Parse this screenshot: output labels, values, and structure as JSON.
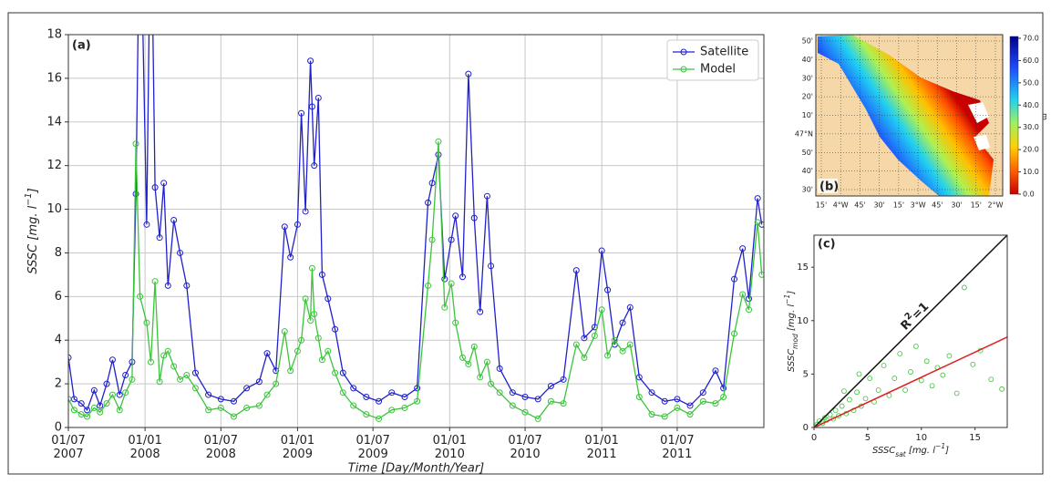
{
  "chart_data": [
    {
      "type": "line",
      "label": "(a)",
      "ylabel": [
        "SSSC [mg. l",
        "−1",
        "]"
      ],
      "xlabel": "Time [Day/Month/Year]",
      "x": [
        "2007-07-01",
        "2007-07-15",
        "2007-08-01",
        "2007-08-15",
        "2007-09-01",
        "2007-09-15",
        "2007-10-01",
        "2007-10-15",
        "2007-11-01",
        "2007-11-15",
        "2007-12-01",
        "2007-12-10",
        "2007-12-20",
        "2008-01-05",
        "2008-01-15",
        "2008-01-25",
        "2008-02-05",
        "2008-02-15",
        "2008-02-25",
        "2008-03-10",
        "2008-03-25",
        "2008-04-10",
        "2008-05-01",
        "2008-06-01",
        "2008-07-01",
        "2008-08-01",
        "2008-09-01",
        "2008-10-01",
        "2008-10-20",
        "2008-11-10",
        "2008-12-01",
        "2008-12-15",
        "2009-01-01",
        "2009-01-10",
        "2009-01-20",
        "2009-02-01",
        "2009-02-05",
        "2009-02-10",
        "2009-02-20",
        "2009-03-01",
        "2009-03-15",
        "2009-04-01",
        "2009-04-20",
        "2009-05-15",
        "2009-06-15",
        "2009-07-15",
        "2009-08-15",
        "2009-09-15",
        "2009-10-15",
        "2009-11-10",
        "2009-11-20",
        "2009-12-05",
        "2009-12-20",
        "2010-01-05",
        "2010-01-15",
        "2010-02-01",
        "2010-02-15",
        "2010-03-01",
        "2010-03-15",
        "2010-04-01",
        "2010-04-10",
        "2010-05-01",
        "2010-06-01",
        "2010-07-01",
        "2010-08-01",
        "2010-09-01",
        "2010-10-01",
        "2010-11-01",
        "2010-11-20",
        "2010-12-15",
        "2011-01-01",
        "2011-01-15",
        "2011-02-01",
        "2011-02-20",
        "2011-03-10",
        "2011-04-01",
        "2011-05-01",
        "2011-06-01",
        "2011-07-01",
        "2011-08-01",
        "2011-09-01",
        "2011-10-01",
        "2011-10-20",
        "2011-11-15",
        "2011-12-05",
        "2011-12-20",
        "2012-01-10",
        "2012-01-20"
      ],
      "xlim": [
        "2007-07-01",
        "2012-01-25"
      ],
      "xticks": [
        {
          "value": "2007-07-01",
          "label": "01/07\n2007"
        },
        {
          "value": "2008-01-01",
          "label": "01/01\n2008"
        },
        {
          "value": "2008-07-01",
          "label": "01/07\n2008"
        },
        {
          "value": "2009-01-01",
          "label": "01/01\n2009"
        },
        {
          "value": "2009-07-01",
          "label": "01/07\n2009"
        },
        {
          "value": "2010-01-01",
          "label": "01/01\n2010"
        },
        {
          "value": "2010-07-01",
          "label": "01/07\n2010"
        },
        {
          "value": "2011-01-01",
          "label": "01/01\n2011"
        },
        {
          "value": "2011-07-01",
          "label": "01/07\n2011"
        }
      ],
      "ylim": [
        0,
        18
      ],
      "yticks": [
        0,
        2,
        4,
        6,
        8,
        10,
        12,
        14,
        16,
        18
      ],
      "grid": true,
      "legend": "upper right",
      "series": [
        {
          "name": "Satellite",
          "color": "#2020cc",
          "values": [
            3.2,
            1.3,
            1.1,
            0.8,
            1.7,
            1.0,
            2.0,
            3.1,
            1.5,
            2.4,
            3.0,
            10.7,
            25,
            9.3,
            25,
            11.0,
            8.7,
            11.2,
            6.5,
            9.5,
            8.0,
            6.5,
            2.5,
            1.5,
            1.3,
            1.2,
            1.8,
            2.1,
            3.4,
            2.6,
            9.2,
            7.8,
            9.3,
            14.4,
            9.9,
            16.8,
            14.7,
            12.0,
            15.1,
            7.0,
            5.9,
            4.5,
            2.5,
            1.8,
            1.4,
            1.2,
            1.6,
            1.4,
            1.8,
            10.3,
            11.2,
            12.5,
            6.8,
            8.6,
            9.7,
            6.9,
            16.2,
            9.6,
            5.3,
            10.6,
            7.4,
            2.7,
            1.6,
            1.4,
            1.3,
            1.9,
            2.2,
            7.2,
            4.1,
            4.6,
            8.1,
            6.3,
            3.8,
            4.8,
            5.5,
            2.3,
            1.6,
            1.2,
            1.3,
            1.0,
            1.6,
            2.6,
            1.8,
            6.8,
            8.2,
            5.9,
            10.5,
            9.3
          ]
        },
        {
          "name": "Model",
          "color": "#3cc43c",
          "values": [
            1.3,
            0.8,
            0.6,
            0.5,
            0.9,
            0.7,
            1.1,
            1.5,
            0.8,
            1.6,
            2.2,
            13.0,
            6.0,
            4.8,
            3.0,
            6.7,
            2.1,
            3.3,
            3.5,
            2.8,
            2.2,
            2.4,
            1.8,
            0.8,
            0.9,
            0.5,
            0.9,
            1.0,
            1.5,
            2.0,
            4.4,
            2.6,
            3.5,
            4.0,
            5.9,
            4.9,
            7.3,
            5.2,
            4.1,
            3.1,
            3.5,
            2.5,
            1.6,
            1.0,
            0.6,
            0.4,
            0.8,
            0.9,
            1.2,
            6.5,
            8.6,
            13.1,
            5.5,
            6.6,
            4.8,
            3.2,
            2.9,
            3.7,
            2.3,
            3.0,
            2.0,
            1.6,
            1.0,
            0.7,
            0.4,
            1.2,
            1.1,
            3.8,
            3.2,
            4.2,
            5.4,
            3.3,
            4.0,
            3.5,
            3.8,
            1.4,
            0.6,
            0.5,
            0.9,
            0.6,
            1.2,
            1.1,
            1.4,
            4.3,
            6.1,
            5.4,
            9.4,
            7.0
          ]
        }
      ]
    },
    {
      "type": "scatter",
      "label": "(c)",
      "xlabel": [
        "SSSC",
        "sat",
        " [mg. l",
        "−1",
        "]"
      ],
      "ylabel": [
        "SSSC",
        "mod",
        " [mg. l",
        "−1",
        "]"
      ],
      "x": [
        0.3,
        0.5,
        0.8,
        1,
        1.2,
        1.5,
        1.8,
        2,
        2.3,
        2.6,
        3,
        3.3,
        3.7,
        4,
        4.4,
        4.8,
        5.2,
        5.6,
        6,
        6.5,
        7,
        7.5,
        8,
        8.5,
        9,
        9.5,
        10,
        10.5,
        11,
        11.5,
        12,
        12.6,
        13.3,
        14,
        14.8,
        15.5,
        16.5,
        17.5,
        2.8,
        4.2
      ],
      "y": [
        0.3,
        0.6,
        0.4,
        0.9,
        0.7,
        1.2,
        0.8,
        1.6,
        1.1,
        2.0,
        1.3,
        2.6,
        1.6,
        3.3,
        2.0,
        2.7,
        4.6,
        2.4,
        3.5,
        5.8,
        3.0,
        4.6,
        6.9,
        3.5,
        5.2,
        7.6,
        4.4,
        6.2,
        3.9,
        5.6,
        4.9,
        6.7,
        3.2,
        13.1,
        5.9,
        7.2,
        4.5,
        3.6,
        3.4,
        5.0
      ],
      "color": "#3cc43c",
      "xlim": [
        0,
        18
      ],
      "ylim": [
        0,
        18
      ],
      "xticks": [
        0,
        5,
        10,
        15
      ],
      "yticks": [
        0,
        5,
        10,
        15
      ],
      "grid": false,
      "lines": [
        {
          "slope": 1,
          "color": "#111111",
          "label": [
            "R",
            "2",
            "=1"
          ]
        },
        {
          "slope": 0.47,
          "color": "#e02020"
        }
      ]
    }
  ],
  "map": {
    "label": "(b)",
    "lat_labels": [
      "50'",
      "40'",
      "30'",
      "20'",
      "10'",
      "47°N",
      "50'",
      "40'",
      "30'"
    ],
    "lon_labels": [
      "15'",
      "4°W",
      "45'",
      "30'",
      "15'",
      "3°W",
      "45'",
      "30'",
      "15'",
      "2°W"
    ],
    "colorbar": {
      "ticks": [
        {
          "value": 70,
          "label": "70.0"
        },
        {
          "value": 60,
          "label": "60.0"
        },
        {
          "value": 50,
          "label": "50.0"
        },
        {
          "value": 40,
          "label": "40.0"
        },
        {
          "value": 30,
          "label": "30.0"
        },
        {
          "value": 20,
          "label": "20.0"
        },
        {
          "value": 10,
          "label": "10.0"
        },
        {
          "value": 0,
          "label": "0.0"
        }
      ],
      "unit": "m"
    }
  }
}
